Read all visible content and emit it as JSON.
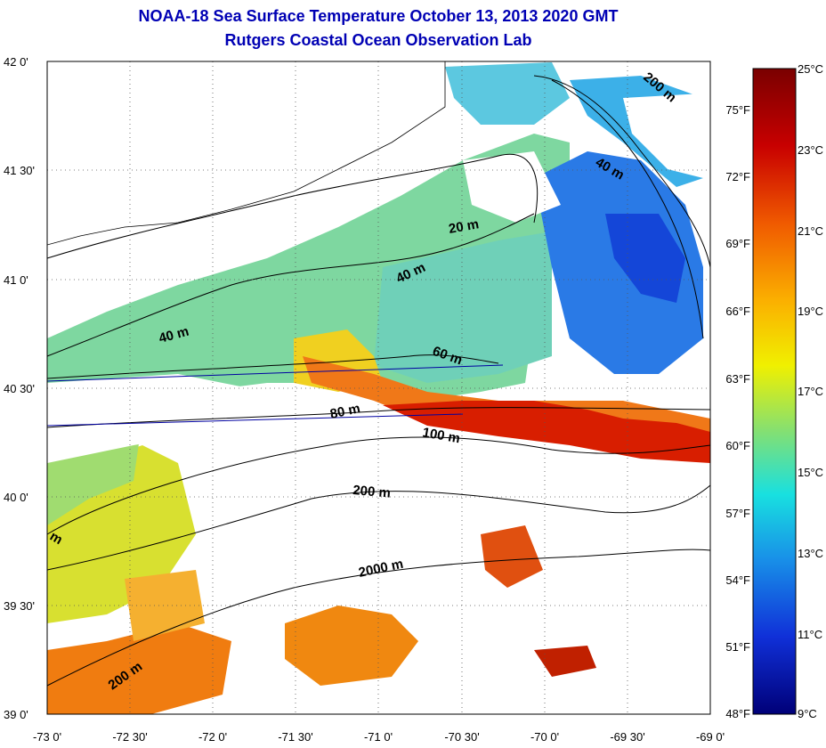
{
  "title": "NOAA-18 Sea Surface Temperature October 13, 2013 2020 GMT",
  "subtitle": "Rutgers Coastal Ocean Observation Lab",
  "x_ticks": [
    "-73 0'",
    "-72 30'",
    "-72 0'",
    "-71 30'",
    "-71 0'",
    "-70 30'",
    "-70 0'",
    "-69 30'",
    "-69 0'"
  ],
  "y_ticks": [
    "42 0'",
    "41 30'",
    "41 0'",
    "40 30'",
    "40 0'",
    "39 30'",
    "39 0'"
  ],
  "contour_labels": [
    "20 m",
    "40 m",
    "40 m",
    "60 m",
    "80 m",
    "100 m",
    "200 m",
    "2000 m",
    "200 m",
    "200 m",
    "40 m",
    "m"
  ],
  "colorbar": {
    "celsius": [
      "25°C",
      "23°C",
      "21°C",
      "19°C",
      "17°C",
      "15°C",
      "13°C",
      "11°C",
      "9°C"
    ],
    "fahrenheit": [
      "75°F",
      "72°F",
      "69°F",
      "66°F",
      "63°F",
      "60°F",
      "57°F",
      "54°F",
      "51°F",
      "48°F"
    ]
  }
}
